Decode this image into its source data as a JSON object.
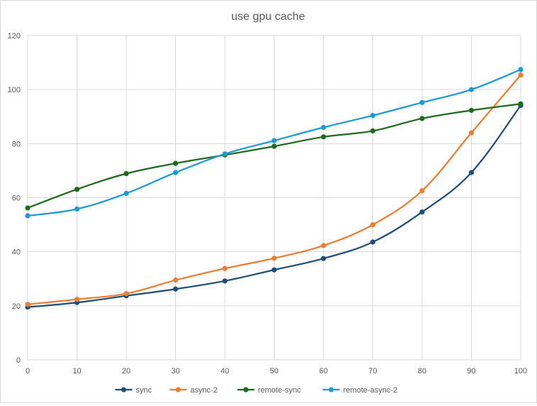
{
  "chart_data": {
    "type": "line",
    "title": "use gpu cache",
    "xlabel": "",
    "ylabel": "",
    "x": [
      0,
      10,
      20,
      30,
      40,
      50,
      60,
      70,
      80,
      90,
      100
    ],
    "xlim": [
      0,
      100
    ],
    "ylim": [
      0,
      120
    ],
    "x_ticks": [
      "0",
      "10",
      "20",
      "30",
      "40",
      "50",
      "60",
      "70",
      "80",
      "90",
      "100"
    ],
    "y_ticks": [
      "0",
      "20",
      "40",
      "60",
      "80",
      "100",
      "120"
    ],
    "grid": "vertical and horizontal",
    "legend_position": "bottom",
    "series": [
      {
        "name": "sync",
        "color": "#1f4e79",
        "values": [
          19.5,
          21.2,
          23.7,
          26.2,
          29.2,
          33.3,
          37.5,
          43.6,
          54.7,
          69.3,
          94.1
        ]
      },
      {
        "name": "async-2",
        "color": "#ed7d31",
        "values": [
          20.5,
          22.4,
          24.5,
          29.5,
          33.8,
          37.6,
          42.3,
          50.0,
          62.6,
          84.0,
          105.4
        ]
      },
      {
        "name": "remote-sync",
        "color": "#1e6b1e",
        "values": [
          56.2,
          63.1,
          68.9,
          72.7,
          75.8,
          79.0,
          82.5,
          84.7,
          89.3,
          92.3,
          94.7
        ]
      },
      {
        "name": "remote-async-2",
        "color": "#1b9ad6",
        "values": [
          53.3,
          55.8,
          61.6,
          69.3,
          76.2,
          81.1,
          86.0,
          90.4,
          95.2,
          100.0,
          107.4
        ]
      }
    ]
  }
}
